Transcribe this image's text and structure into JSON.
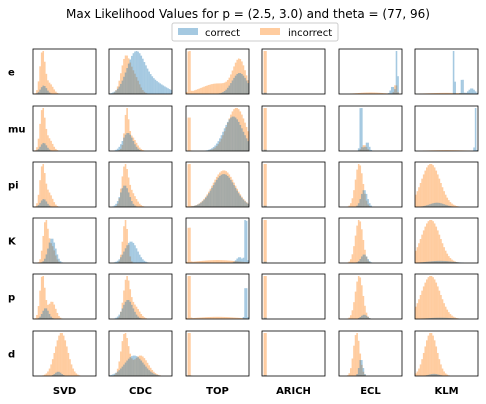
{
  "chart_data": {
    "type": "histogram-grid",
    "title": "Max Likelihood Values for p = (2.5, 3.0) and theta =  (77, 96)",
    "legend": {
      "placement": "top-center",
      "entries": [
        {
          "name": "correct",
          "color": "#1f77b4"
        },
        {
          "name": "incorrect",
          "color": "#ff7f0e"
        }
      ]
    },
    "bar_alpha": 0.4,
    "x_range": [
      0,
      1
    ],
    "rows": [
      "e",
      "mu",
      "pi",
      "K",
      "p",
      "d"
    ],
    "columns": [
      "SVD",
      "CDC",
      "TOP",
      "ARICH",
      "ECL",
      "KLM"
    ],
    "bins": 40,
    "histograms": {
      "e": {
        "SVD": {
          "correct": [
            [
              0.17,
              0.05,
              0.2
            ]
          ],
          "incorrect": [
            [
              0.15,
              0.04,
              1.0
            ],
            [
              0.26,
              0.06,
              0.25
            ]
          ]
        },
        "CDC": {
          "correct": [
            [
              0.42,
              0.14,
              1.0
            ],
            [
              0.7,
              0.2,
              0.3
            ]
          ],
          "incorrect": [
            [
              0.26,
              0.07,
              0.9
            ],
            [
              0.4,
              0.08,
              0.45
            ]
          ]
        },
        "TOP": {
          "correct": [
            [
              0.85,
              0.12,
              0.3
            ]
          ],
          "incorrect": [
            [
              0.05,
              0.012,
              1.0
            ],
            [
              0.85,
              0.1,
              0.45
            ],
            [
              0.5,
              0.25,
              0.15
            ]
          ]
        },
        "ARICH": {
          "correct": [
            [
              0.05,
              0.01,
              0.03
            ]
          ],
          "incorrect": [
            [
              0.05,
              0.01,
              1.0
            ]
          ]
        },
        "ECL": {
          "correct": [
            [
              0.92,
              0.012,
              1.0
            ],
            [
              0.85,
              0.03,
              0.15
            ]
          ],
          "incorrect": [
            [
              0.9,
              0.02,
              0.2
            ],
            [
              0.5,
              0.2,
              0.03
            ]
          ]
        },
        "KLM": {
          "correct": [
            [
              0.62,
              0.01,
              1.0
            ],
            [
              0.75,
              0.015,
              0.35
            ],
            [
              0.9,
              0.05,
              0.1
            ]
          ],
          "incorrect": [
            [
              0.5,
              0.3,
              0.02
            ]
          ]
        }
      },
      "mu": {
        "SVD": {
          "correct": [
            [
              0.17,
              0.05,
              0.2
            ]
          ],
          "incorrect": [
            [
              0.15,
              0.04,
              1.0
            ],
            [
              0.25,
              0.06,
              0.3
            ]
          ]
        },
        "CDC": {
          "correct": [
            [
              0.3,
              0.08,
              0.55
            ]
          ],
          "incorrect": [
            [
              0.28,
              0.03,
              1.0
            ],
            [
              0.35,
              0.08,
              0.45
            ]
          ]
        },
        "TOP": {
          "correct": [
            [
              0.75,
              0.15,
              0.6
            ]
          ],
          "incorrect": [
            [
              0.05,
              0.012,
              1.0
            ],
            [
              0.8,
              0.15,
              0.75
            ]
          ]
        },
        "ARICH": {
          "correct": [
            [
              0.05,
              0.01,
              0.03
            ]
          ],
          "incorrect": [
            [
              0.05,
              0.01,
              1.0
            ]
          ]
        },
        "ECL": {
          "correct": [
            [
              0.35,
              0.015,
              1.0
            ],
            [
              0.45,
              0.03,
              0.15
            ]
          ],
          "incorrect": [
            [
              0.4,
              0.04,
              0.1
            ]
          ]
        },
        "KLM": {
          "correct": [
            [
              0.96,
              0.01,
              1.0
            ]
          ],
          "incorrect": [
            [
              0.5,
              0.3,
              0.02
            ]
          ]
        }
      },
      "pi": {
        "SVD": {
          "correct": [
            [
              0.17,
              0.05,
              0.2
            ]
          ],
          "incorrect": [
            [
              0.15,
              0.04,
              1.0
            ],
            [
              0.25,
              0.06,
              0.35
            ]
          ]
        },
        "CDC": {
          "correct": [
            [
              0.25,
              0.07,
              0.6
            ]
          ],
          "incorrect": [
            [
              0.25,
              0.05,
              1.0
            ],
            [
              0.35,
              0.08,
              0.4
            ]
          ]
        },
        "TOP": {
          "correct": [
            [
              0.6,
              0.18,
              0.45
            ]
          ],
          "incorrect": [
            [
              0.05,
              0.012,
              1.0
            ],
            [
              0.6,
              0.18,
              0.5
            ]
          ]
        },
        "ARICH": {
          "correct": [
            [
              0.05,
              0.01,
              0.03
            ]
          ],
          "incorrect": [
            [
              0.05,
              0.01,
              1.0
            ]
          ]
        },
        "ECL": {
          "correct": [
            [
              0.4,
              0.05,
              0.4
            ]
          ],
          "incorrect": [
            [
              0.32,
              0.06,
              1.0
            ]
          ]
        },
        "KLM": {
          "correct": [
            [
              0.35,
              0.12,
              0.1
            ]
          ],
          "incorrect": [
            [
              0.25,
              0.15,
              1.0
            ]
          ]
        }
      },
      "K": {
        "SVD": {
          "correct": [
            [
              0.3,
              0.06,
              0.6
            ]
          ],
          "incorrect": [
            [
              0.2,
              0.04,
              1.0
            ],
            [
              0.3,
              0.05,
              0.4
            ]
          ]
        },
        "CDC": {
          "correct": [
            [
              0.35,
              0.1,
              0.5
            ]
          ],
          "incorrect": [
            [
              0.26,
              0.04,
              1.0
            ]
          ]
        },
        "TOP": {
          "correct": [
            [
              0.95,
              0.015,
              1.0
            ],
            [
              0.85,
              0.05,
              0.1
            ]
          ],
          "incorrect": [
            [
              0.05,
              0.012,
              1.0
            ],
            [
              0.5,
              0.3,
              0.05
            ]
          ]
        },
        "ARICH": {
          "correct": [
            [
              0.05,
              0.01,
              0.03
            ]
          ],
          "incorrect": [
            [
              0.05,
              0.01,
              1.0
            ]
          ]
        },
        "ECL": {
          "correct": [
            [
              0.4,
              0.05,
              0.2
            ]
          ],
          "incorrect": [
            [
              0.32,
              0.06,
              1.0
            ]
          ]
        },
        "KLM": {
          "correct": [
            [
              0.4,
              0.2,
              0.05
            ]
          ],
          "incorrect": [
            [
              0.25,
              0.15,
              1.0
            ]
          ]
        }
      },
      "p": {
        "SVD": {
          "correct": [
            [
              0.2,
              0.05,
              0.25
            ]
          ],
          "incorrect": [
            [
              0.15,
              0.04,
              1.0
            ],
            [
              0.3,
              0.06,
              0.4
            ]
          ]
        },
        "CDC": {
          "correct": [
            [
              0.3,
              0.08,
              0.5
            ]
          ],
          "incorrect": [
            [
              0.28,
              0.05,
              1.0
            ],
            [
              0.4,
              0.08,
              0.35
            ]
          ]
        },
        "TOP": {
          "correct": [
            [
              0.95,
              0.015,
              0.6
            ]
          ],
          "incorrect": [
            [
              0.05,
              0.012,
              1.0
            ],
            [
              0.5,
              0.3,
              0.03
            ]
          ]
        },
        "ARICH": {
          "correct": [
            [
              0.05,
              0.01,
              0.03
            ]
          ],
          "incorrect": [
            [
              0.05,
              0.01,
              1.0
            ]
          ]
        },
        "ECL": {
          "correct": [
            [
              0.4,
              0.05,
              0.1
            ]
          ],
          "incorrect": [
            [
              0.32,
              0.06,
              1.0
            ]
          ]
        },
        "KLM": {
          "correct": [
            [
              0.4,
              0.2,
              0.03
            ]
          ],
          "incorrect": [
            [
              0.25,
              0.15,
              1.0
            ]
          ]
        }
      },
      "d": {
        "SVD": {
          "correct": [
            [
              0.4,
              0.05,
              0.1
            ]
          ],
          "incorrect": [
            [
              0.45,
              0.1,
              1.0
            ]
          ]
        },
        "CDC": {
          "correct": [
            [
              0.4,
              0.15,
              0.5
            ]
          ],
          "incorrect": [
            [
              0.25,
              0.06,
              1.0
            ],
            [
              0.5,
              0.12,
              0.5
            ]
          ]
        },
        "TOP": {
          "correct": [
            [
              0.05,
              0.01,
              0.02
            ]
          ],
          "incorrect": [
            [
              0.05,
              0.012,
              1.0
            ]
          ]
        },
        "ARICH": {
          "correct": [
            [
              0.05,
              0.01,
              0.02
            ]
          ],
          "incorrect": [
            [
              0.05,
              0.01,
              1.0
            ]
          ]
        },
        "ECL": {
          "correct": [
            [
              0.35,
              0.03,
              0.4
            ]
          ],
          "incorrect": [
            [
              0.28,
              0.05,
              1.0
            ]
          ]
        },
        "KLM": {
          "correct": [
            [
              0.3,
              0.08,
              0.05
            ]
          ],
          "incorrect": [
            [
              0.25,
              0.1,
              1.0
            ]
          ]
        }
      }
    }
  }
}
